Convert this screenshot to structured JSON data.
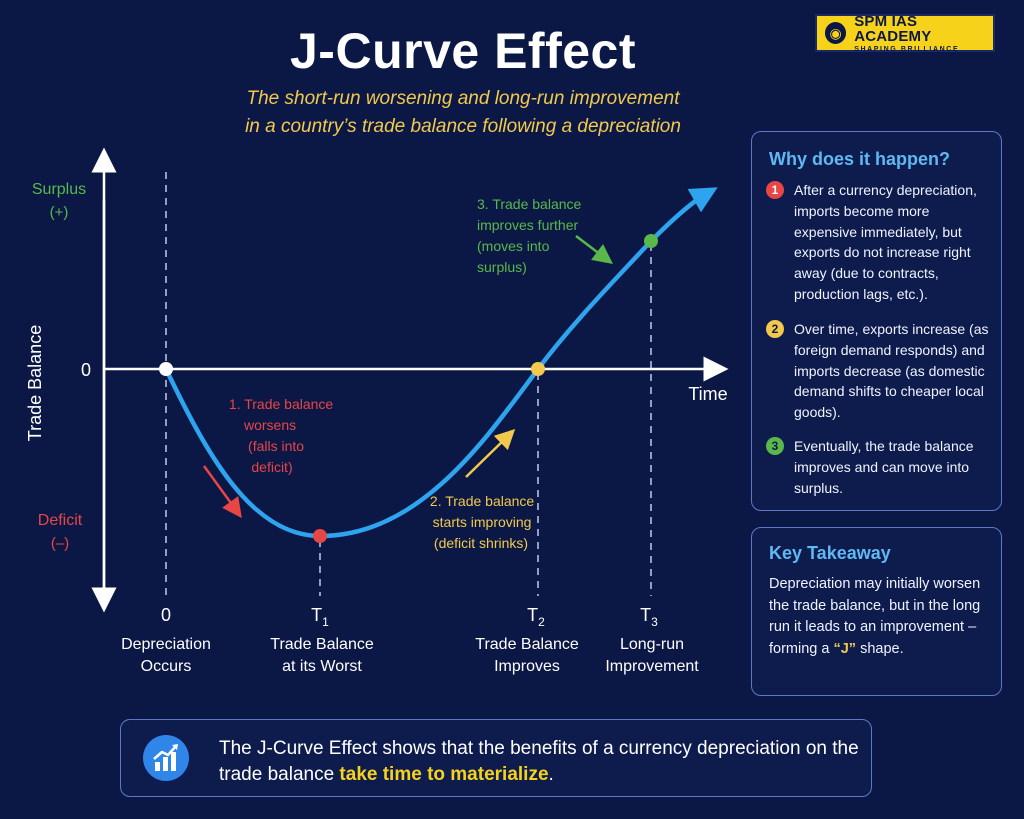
{
  "title": "J-Curve Effect",
  "subtitle": {
    "line1": "The short-run worsening and long-run improvement",
    "line2": "in a country’s trade balance following a depreciation"
  },
  "logo": {
    "name": "SPM IAS ACADEMY",
    "tagline": "SHAPING BRILLIANCE"
  },
  "axes": {
    "y_label": "Trade Balance",
    "x_label": "Time",
    "surplus": "Surplus",
    "surplus_sign": "(+)",
    "deficit": "Deficit",
    "deficit_sign": "(–)",
    "zero": "0"
  },
  "time_points": [
    {
      "tick": "0",
      "sub": "",
      "line1": "Depreciation",
      "line2": "Occurs"
    },
    {
      "tick": "T",
      "sub": "1",
      "line1": "Trade Balance",
      "line2": "at its Worst"
    },
    {
      "tick": "T",
      "sub": "2",
      "line1": "Trade Balance",
      "line2": "Improves"
    },
    {
      "tick": "T",
      "sub": "3",
      "line1": "Long-run",
      "line2": "Improvement"
    }
  ],
  "annotations": {
    "worsens": [
      "1. Trade balance",
      "worsens",
      "(falls into",
      "deficit)"
    ],
    "improving": [
      "2. Trade balance",
      "starts improving",
      "(deficit shrinks)"
    ],
    "further": [
      "3. Trade balance",
      "improves further",
      "(moves into",
      "surplus)"
    ]
  },
  "why": {
    "title": "Why does it happen?",
    "reasons": [
      {
        "num": "1",
        "text": "After a currency depreciation, imports become more expensive immediately, but exports do not increase right away (due to contracts, production lags, etc.)."
      },
      {
        "num": "2",
        "text": "Over time, exports increase (as foreign demand responds) and imports decrease (as domestic demand shifts to cheaper local goods)."
      },
      {
        "num": "3",
        "text": "Eventually, the trade balance improves and can move into surplus."
      }
    ]
  },
  "takeaway": {
    "title": "Key Takeaway",
    "text_before": "Depreciation may initially worsen the trade balance, but in the long run it leads to an improvement – forming a ",
    "quote": "“J”",
    "text_after": " shape."
  },
  "bottom": {
    "text_before": "The J-Curve Effect shows that the benefits of a currency depreciation on the trade balance ",
    "highlight": "take time to materialize",
    "text_after": "."
  },
  "colors": {
    "background": "#0b1846",
    "curve": "#2ea3ee",
    "red": "#e84545",
    "yellow": "#f2c94c",
    "green": "#59b84a",
    "panel_title": "#5fb8f2"
  },
  "icons": {
    "bottom": "growth-chart-icon",
    "logo": "academy-emblem-icon"
  }
}
